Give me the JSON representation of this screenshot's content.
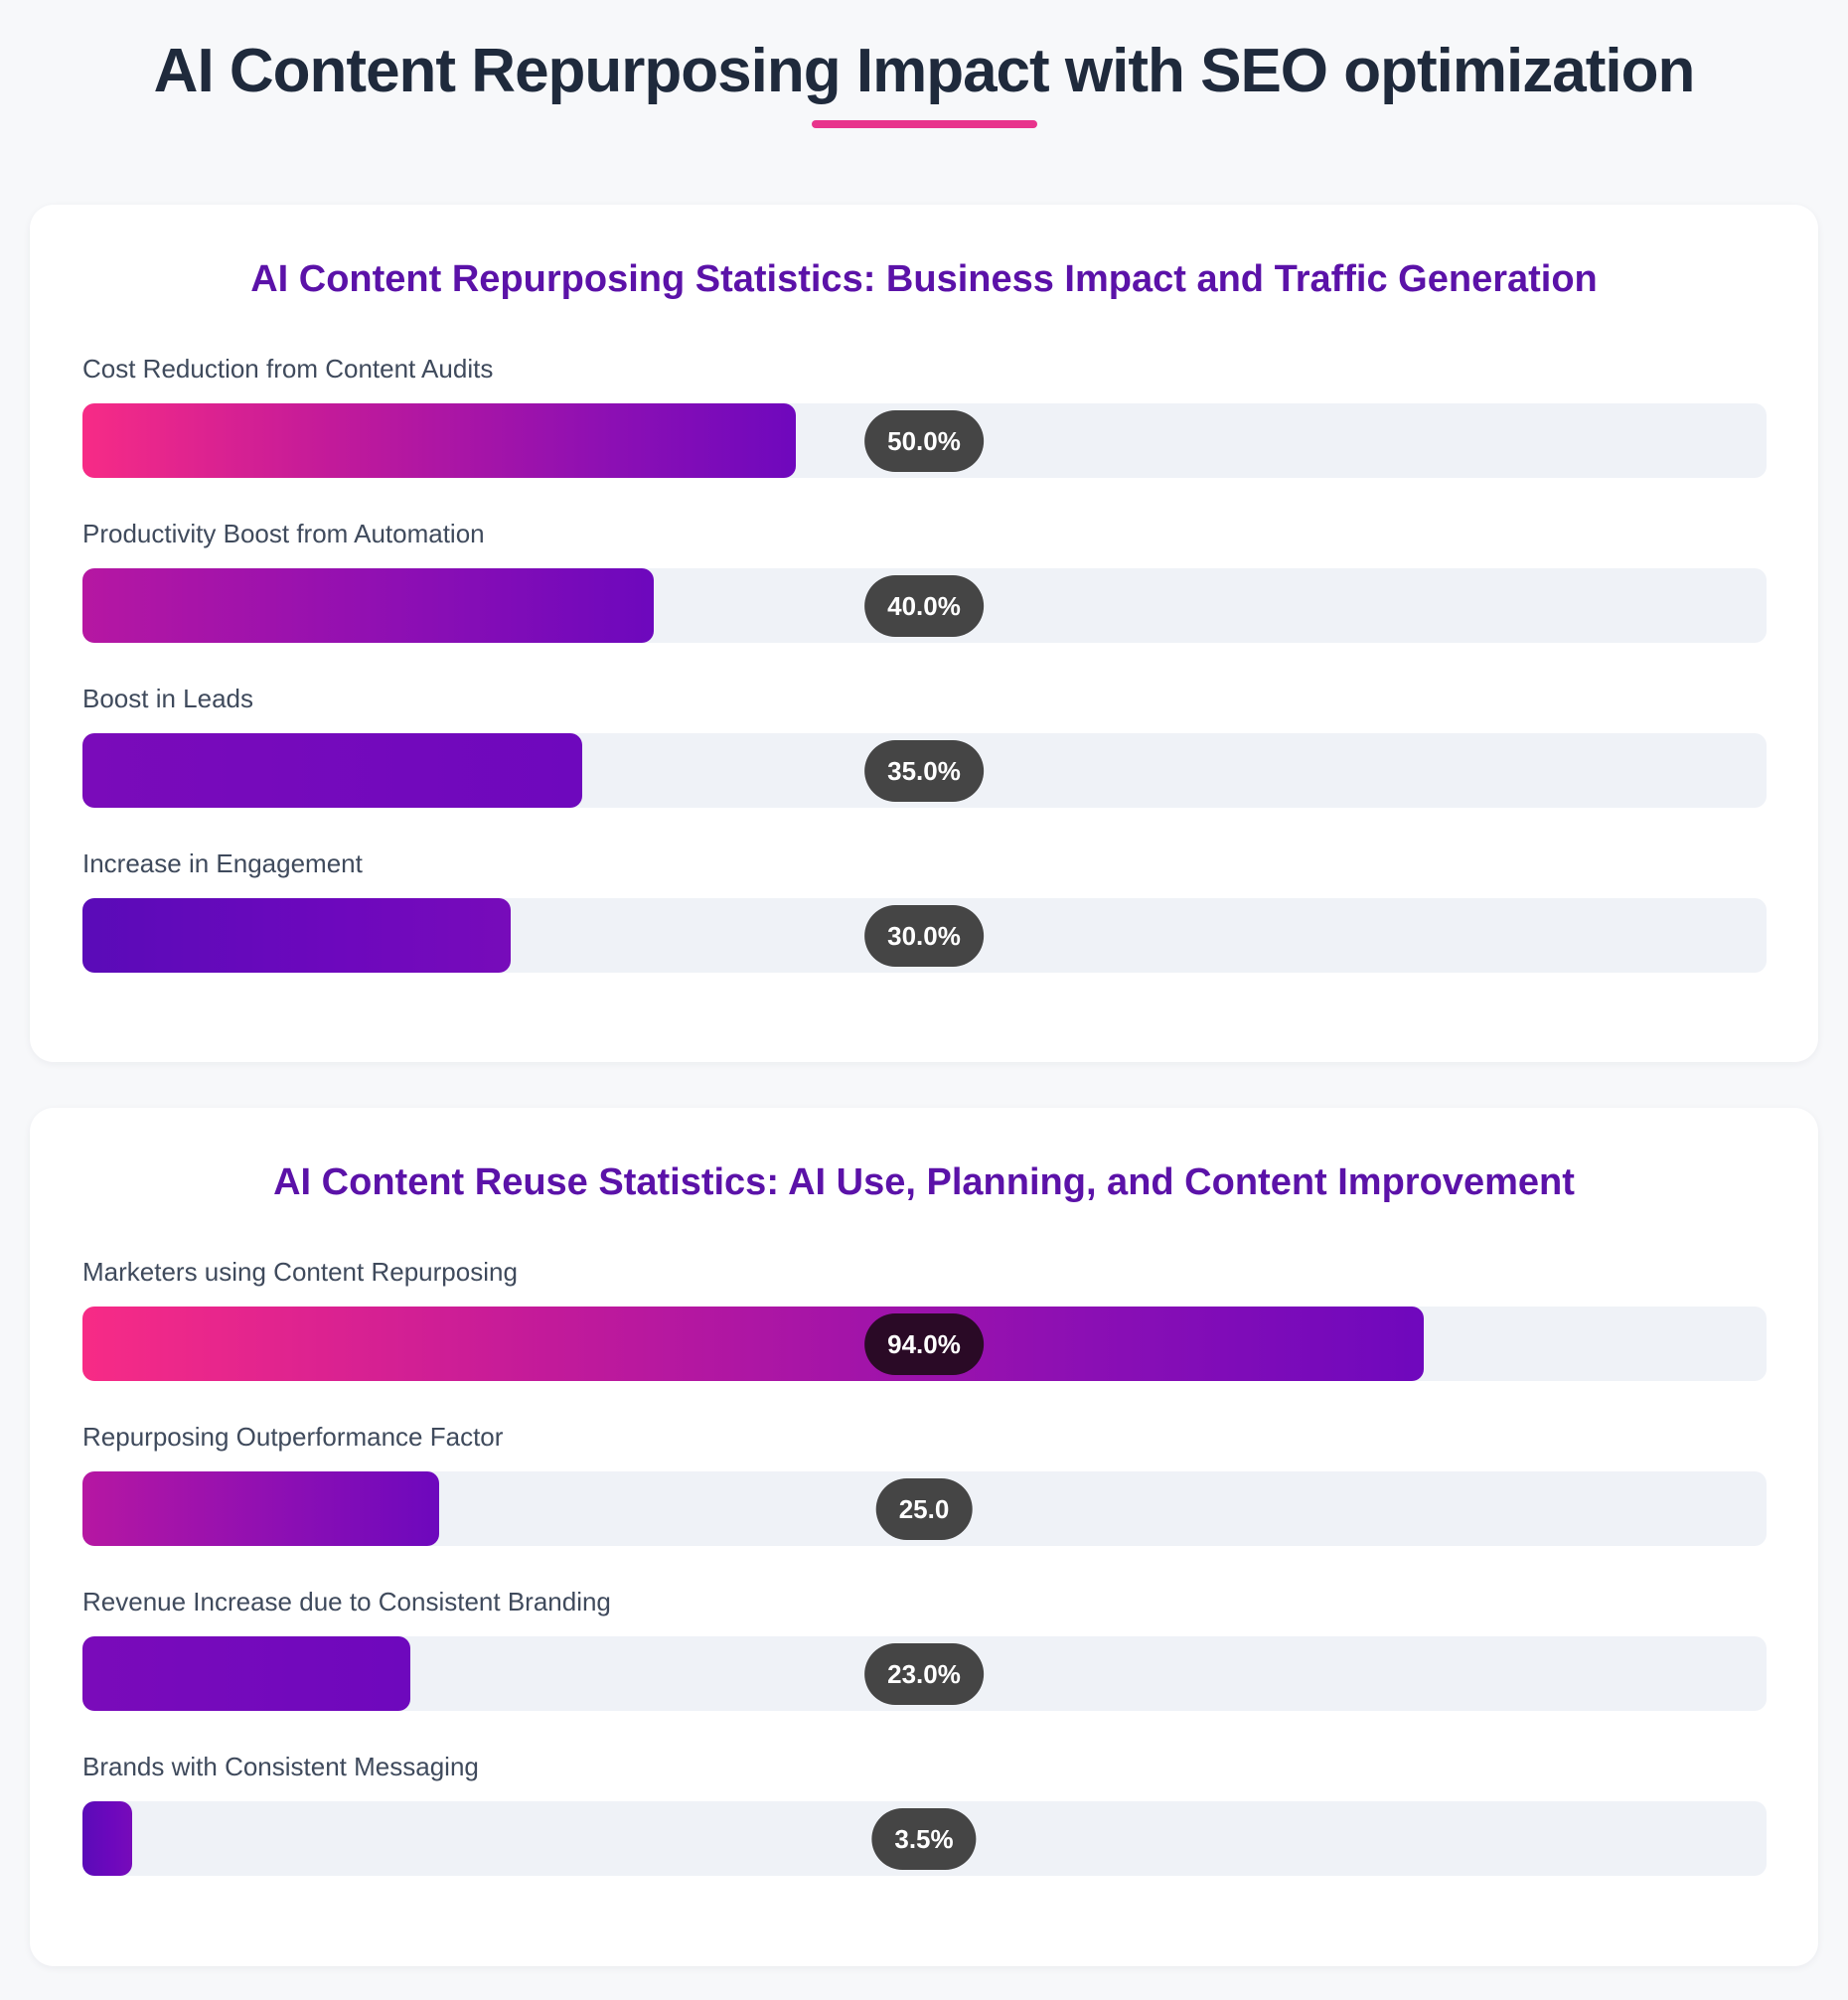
{
  "page_title": "AI Content Repurposing Impact with SEO optimization",
  "colors": {
    "title": "#1f2a3c",
    "accent_underline": "#e8348c",
    "section_title": "#5b12a8",
    "track": "#eff2f7",
    "pill": "#454545"
  },
  "chart_data": [
    {
      "type": "bar",
      "orientation": "horizontal",
      "title": "AI Content Repurposing Statistics: Business Impact and Traffic Generation",
      "categories": [
        "Cost Reduction from Content Audits",
        "Productivity Boost from Automation",
        "Boost in Leads",
        "Increase in Engagement"
      ],
      "values": [
        50.0,
        40.0,
        35.0,
        30.0
      ],
      "value_labels": [
        "50.0%",
        "40.0%",
        "35.0%",
        "30.0%"
      ],
      "xlim": [
        0,
        118
      ]
    },
    {
      "type": "bar",
      "orientation": "horizontal",
      "title": "AI Content Reuse Statistics: AI Use, Planning, and Content Improvement",
      "categories": [
        "Marketers using Content Repurposing",
        "Repurposing Outperformance Factor",
        "Revenue Increase due to Consistent Branding",
        "Brands with Consistent Messaging"
      ],
      "values": [
        94.0,
        25.0,
        23.0,
        3.5
      ],
      "value_labels": [
        "94.0%",
        "25.0",
        "23.0%",
        "3.5%"
      ],
      "xlim": [
        0,
        118
      ]
    }
  ]
}
